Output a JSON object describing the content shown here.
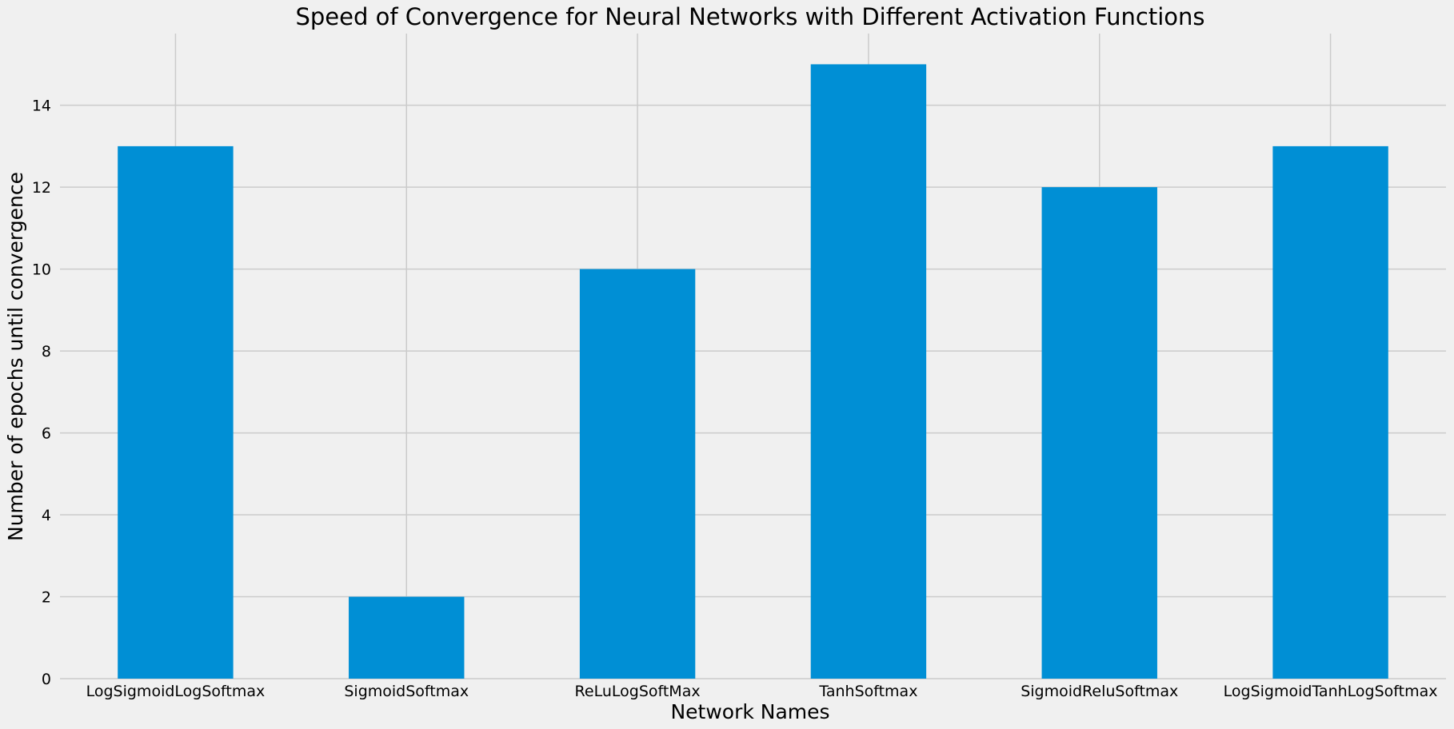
{
  "chart_data": {
    "type": "bar",
    "title": "Speed of Convergence for Neural Networks with Different Activation Functions",
    "xlabel": "Network Names",
    "ylabel": "Number of epochs until convergence",
    "categories": [
      "LogSigmoidLogSoftmax",
      "SigmoidSoftmax",
      "ReLuLogSoftMax",
      "TanhSoftmax",
      "SigmoidReluSoftmax",
      "LogSigmoidTanhLogSoftmax"
    ],
    "values": [
      13,
      2,
      10,
      15,
      12,
      13
    ],
    "yticks": [
      0,
      2,
      4,
      6,
      8,
      10,
      12,
      14
    ],
    "ylim": [
      0,
      15.75
    ],
    "grid": true,
    "bar_color": "#008fd5",
    "grid_color": "#cbcbcb",
    "background_color": "#f0f0f0"
  }
}
